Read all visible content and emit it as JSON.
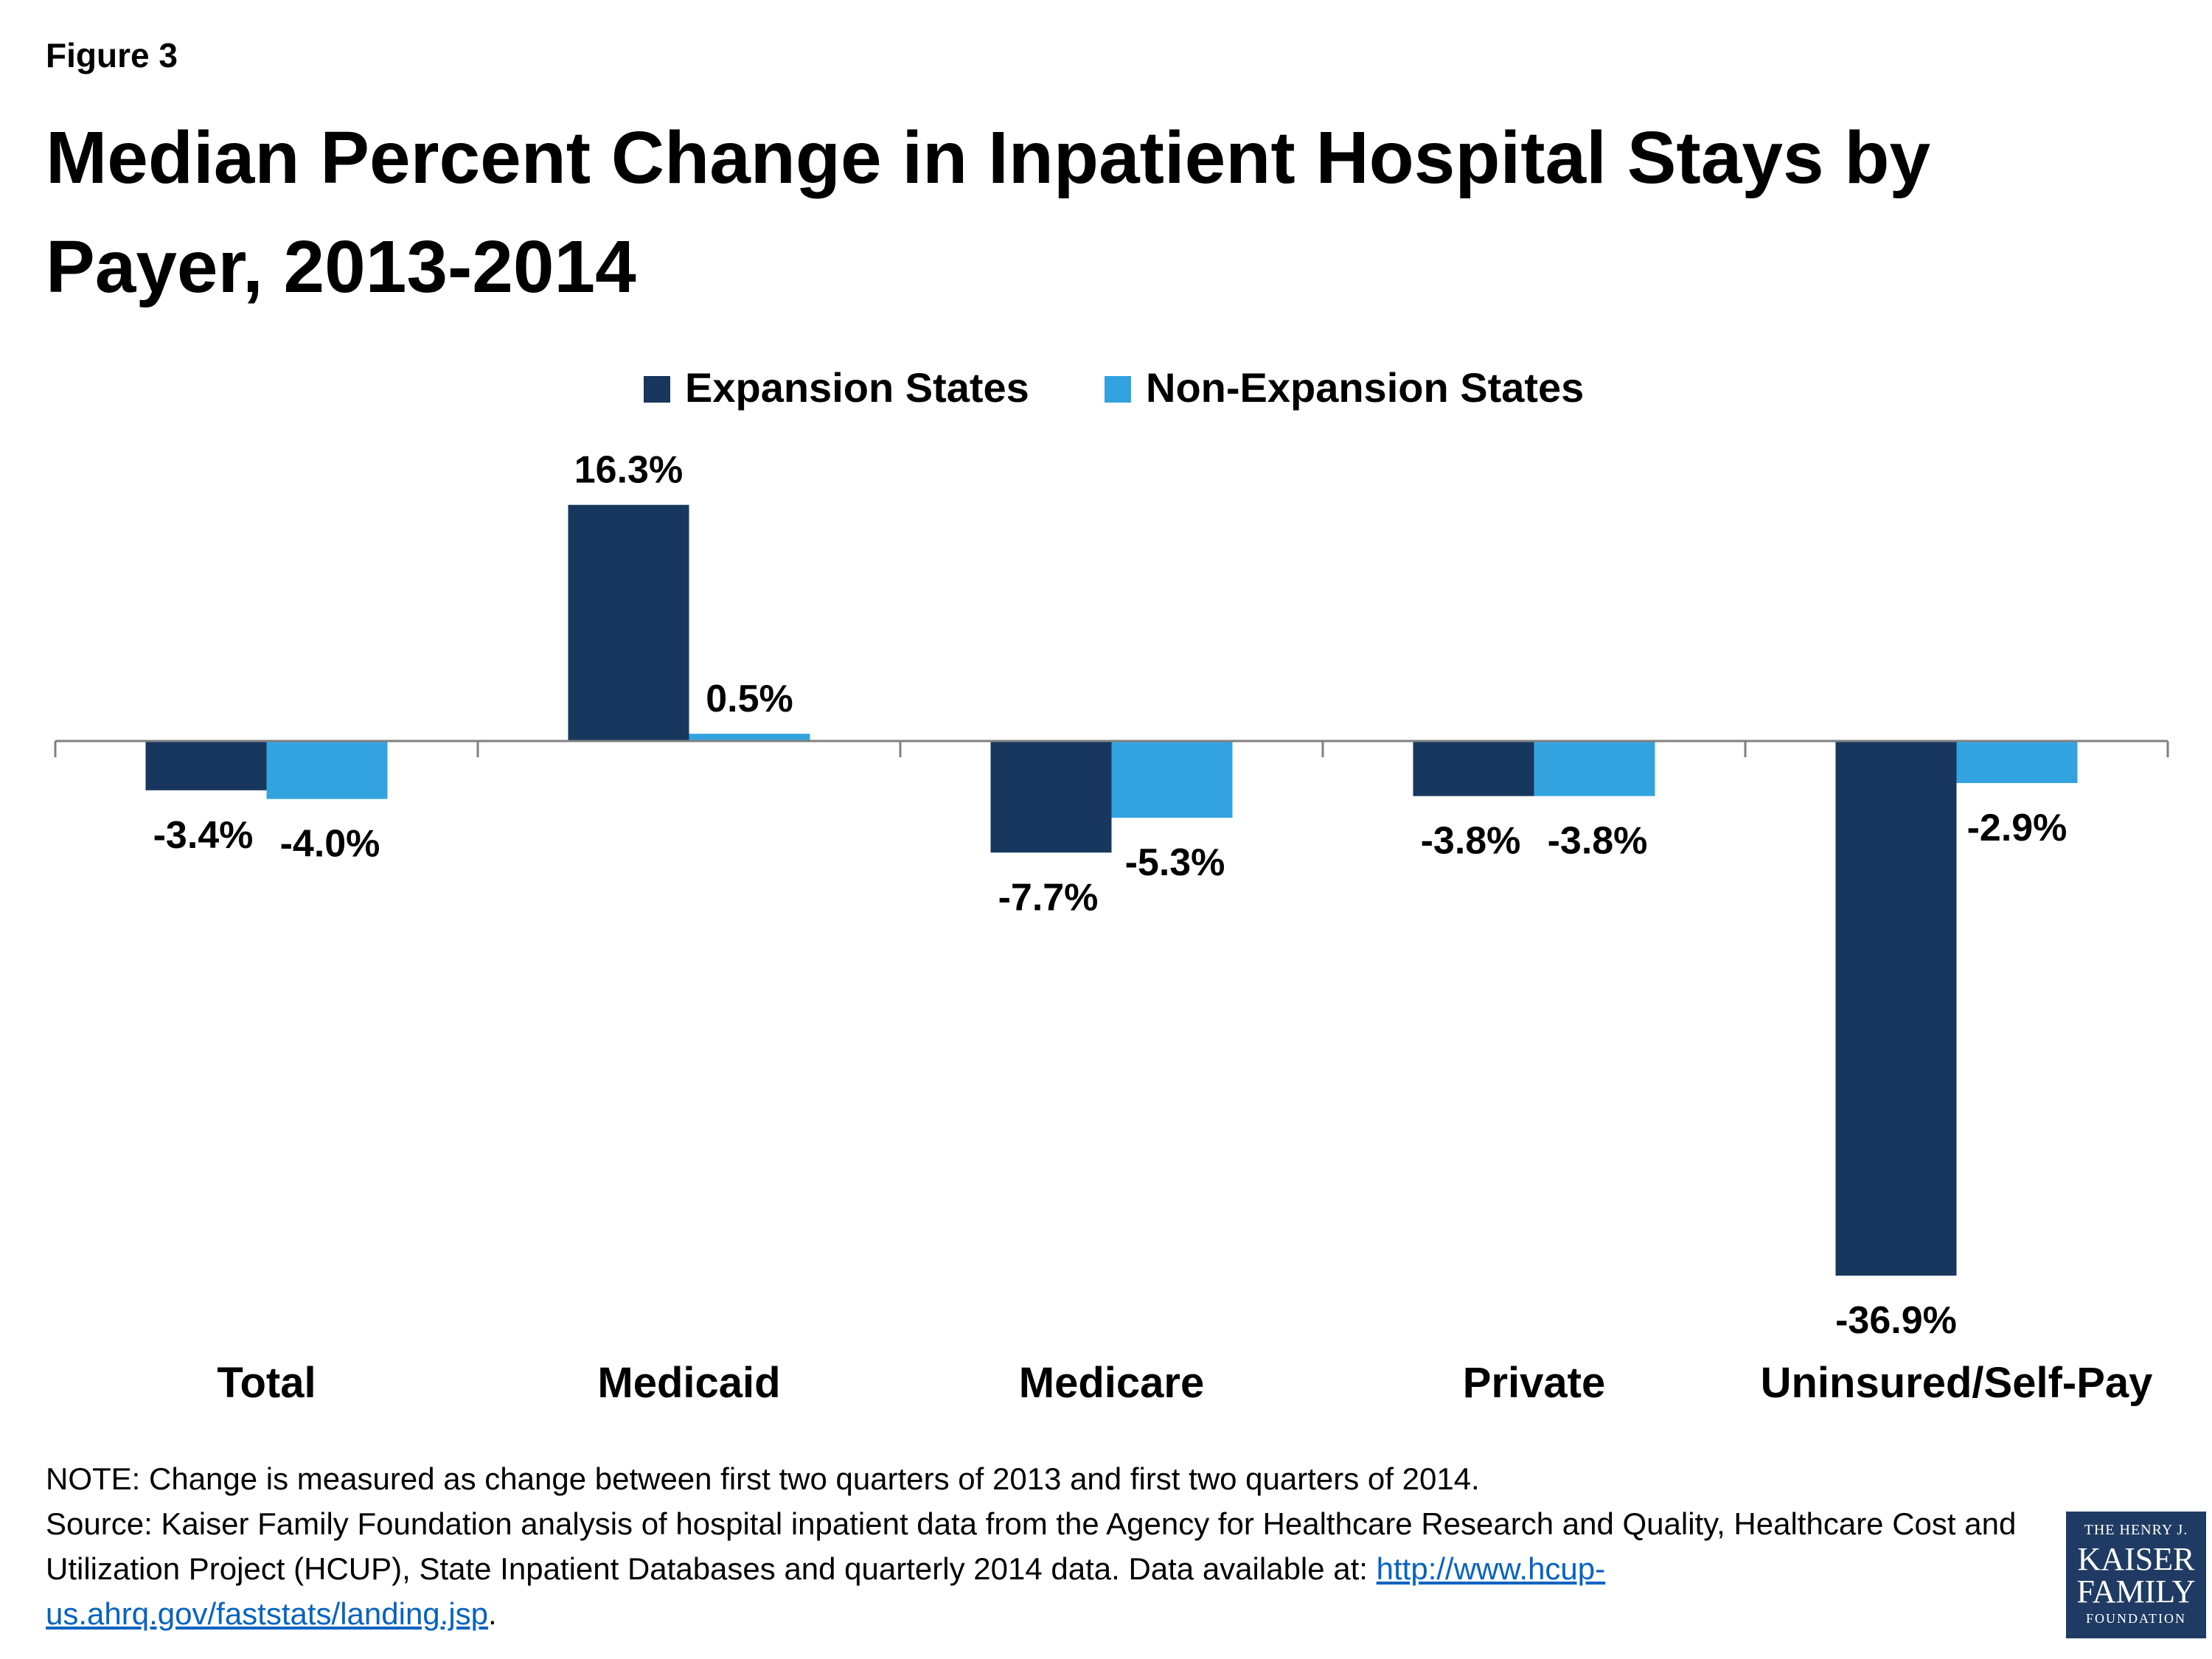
{
  "figure_label": "Figure 3",
  "note": "NOTE: Change is measured as change between first two quarters of 2013 and first two quarters of 2014.",
  "source_prefix": "Source:  Kaiser Family Foundation analysis of hospital inpatient data from the Agency for Healthcare Research and Quality, Healthcare Cost and Utilization Project (HCUP), State Inpatient Databases and quarterly 2014 data. Data available at: ",
  "source_link": "http://www.hcup-us.ahrq.gov/faststats/landing.jsp",
  "source_suffix": ".",
  "logo": {
    "line1": "THE HENRY J.",
    "line2": "KAISER",
    "line3": "FAMILY",
    "line4": "FOUNDATION"
  },
  "colors": {
    "expansion": "#17375e",
    "non_expansion": "#33a3e0",
    "axis": "#808080"
  },
  "chart_data": {
    "type": "bar",
    "title": "Median Percent Change in Inpatient Hospital Stays by Payer, 2013-2014",
    "categories": [
      "Total",
      "Medicaid",
      "Medicare",
      "Private",
      "Uninsured/Self-Pay"
    ],
    "series": [
      {
        "name": "Expansion States",
        "values": [
          -3.4,
          16.3,
          -7.7,
          -3.8,
          -36.9
        ],
        "labels": [
          "-3.4%",
          "16.3%",
          "-7.7%",
          "-3.8%",
          "-36.9%"
        ]
      },
      {
        "name": "Non-Expansion States",
        "values": [
          -4.0,
          0.5,
          -5.3,
          -3.8,
          -2.9
        ],
        "labels": [
          "-4.0%",
          "0.5%",
          "-5.3%",
          "-3.8%",
          "-2.9%"
        ]
      }
    ],
    "xlabel": "",
    "ylabel": "",
    "ylim": [
      -40,
      20
    ],
    "grid": false,
    "legend": "top-center"
  }
}
